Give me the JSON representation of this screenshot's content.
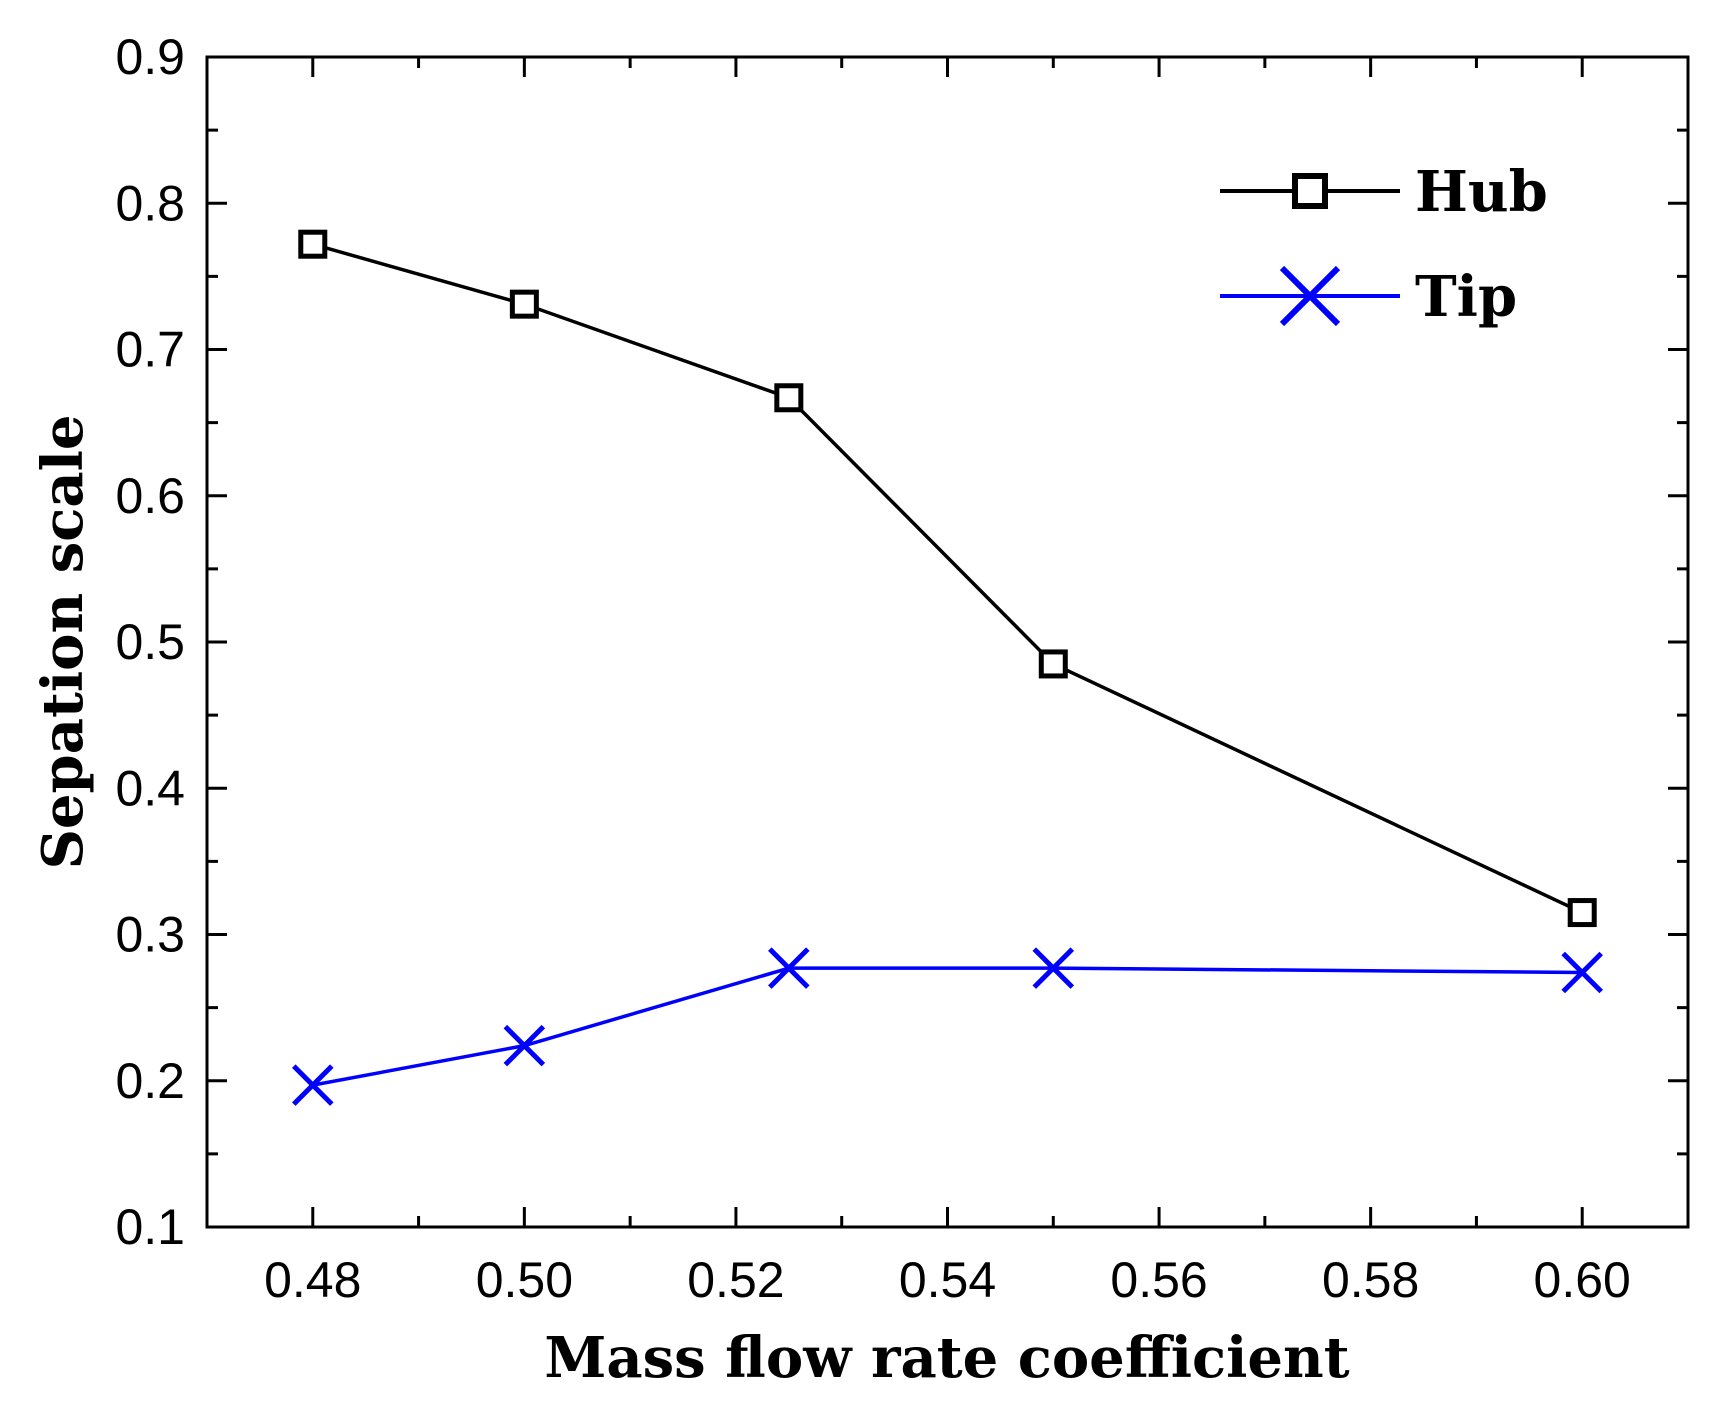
{
  "chart_data": {
    "type": "line",
    "title": "",
    "xlabel": "Mass flow rate coefficient",
    "ylabel": "Sepation scale",
    "xlim": [
      0.47,
      0.61
    ],
    "ylim": [
      0.1,
      0.9
    ],
    "x_ticks": [
      0.48,
      0.5,
      0.52,
      0.54,
      0.56,
      0.58,
      0.6
    ],
    "x_tick_labels": [
      "0.48",
      "0.50",
      "0.52",
      "0.54",
      "0.56",
      "0.58",
      "0.60"
    ],
    "x_minor_ticks": [
      0.49,
      0.51,
      0.53,
      0.55,
      0.57,
      0.59
    ],
    "y_ticks": [
      0.1,
      0.2,
      0.3,
      0.4,
      0.5,
      0.6,
      0.7,
      0.8,
      0.9
    ],
    "y_tick_labels": [
      "0.1",
      "0.2",
      "0.3",
      "0.4",
      "0.5",
      "0.6",
      "0.7",
      "0.8",
      "0.9"
    ],
    "y_minor_ticks": [
      0.15,
      0.25,
      0.35,
      0.45,
      0.55,
      0.65,
      0.75,
      0.85
    ],
    "grid": false,
    "legend_position": "top-right",
    "series": [
      {
        "name": "Hub",
        "color": "#000000",
        "marker": "square",
        "x": [
          0.48,
          0.5,
          0.525,
          0.55,
          0.6
        ],
        "y": [
          0.772,
          0.731,
          0.667,
          0.485,
          0.315
        ]
      },
      {
        "name": "Tip",
        "color": "#0000ff",
        "marker": "x",
        "x": [
          0.48,
          0.5,
          0.525,
          0.55,
          0.6
        ],
        "y": [
          0.197,
          0.224,
          0.277,
          0.277,
          0.274
        ]
      }
    ]
  }
}
